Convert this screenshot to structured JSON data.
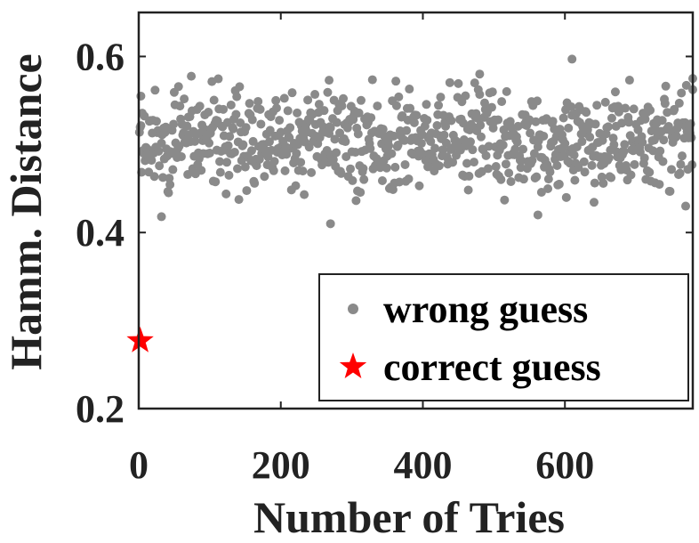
{
  "chart_data": {
    "type": "scatter",
    "title": "",
    "xlabel": "Number of Tries",
    "ylabel": "Hamm. Distance",
    "xlim": [
      0,
      780
    ],
    "ylim": [
      0.2,
      0.65
    ],
    "xticks": [
      0,
      200,
      400,
      600
    ],
    "xtick_labels": [
      "0",
      "200",
      "400",
      "600"
    ],
    "yticks": [
      0.2,
      0.4,
      0.6
    ],
    "ytick_labels": [
      "0.2",
      "0.4",
      "0.6"
    ],
    "grid": false,
    "legend_position": "bottom-right",
    "colors": {
      "wrong": "#8a8a8a",
      "correct": "#ff0000",
      "axis": "#222222"
    },
    "series": [
      {
        "name": "wrong guess",
        "marker": "dot",
        "summary": {
          "count": 780,
          "x_range": [
            1,
            780
          ],
          "y_center": 0.505,
          "y_spread": 0.028,
          "y_min": 0.41,
          "y_max": 0.597
        },
        "notable_points": [
          {
            "x": 270,
            "y": 0.41
          },
          {
            "x": 32,
            "y": 0.418
          },
          {
            "x": 562,
            "y": 0.42
          },
          {
            "x": 480,
            "y": 0.58
          },
          {
            "x": 610,
            "y": 0.597
          },
          {
            "x": 780,
            "y": 0.575
          },
          {
            "x": 268,
            "y": 0.573
          },
          {
            "x": 3,
            "y": 0.555
          },
          {
            "x": 770,
            "y": 0.43
          }
        ]
      },
      {
        "name": "correct guess",
        "marker": "star",
        "points": [
          {
            "x": 2,
            "y": 0.277
          }
        ]
      }
    ]
  }
}
